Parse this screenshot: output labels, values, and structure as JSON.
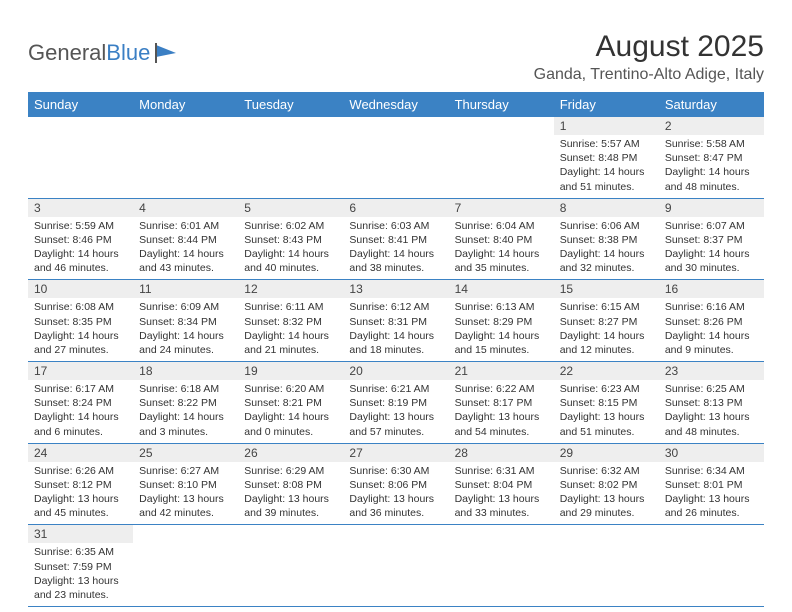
{
  "logo": {
    "text1": "General",
    "text2": "Blue"
  },
  "title": "August 2025",
  "location": "Ganda, Trentino-Alto Adige, Italy",
  "colors": {
    "header_bg": "#3b82c4",
    "header_text": "#ffffff",
    "daynum_bg": "#eeeeee",
    "row_border": "#3b82c4",
    "body_text": "#333333"
  },
  "day_headers": [
    "Sunday",
    "Monday",
    "Tuesday",
    "Wednesday",
    "Thursday",
    "Friday",
    "Saturday"
  ],
  "weeks": [
    [
      null,
      null,
      null,
      null,
      null,
      {
        "n": "1",
        "sr": "5:57 AM",
        "ss": "8:48 PM",
        "dl": "Daylight: 14 hours and 51 minutes."
      },
      {
        "n": "2",
        "sr": "5:58 AM",
        "ss": "8:47 PM",
        "dl": "Daylight: 14 hours and 48 minutes."
      }
    ],
    [
      {
        "n": "3",
        "sr": "5:59 AM",
        "ss": "8:46 PM",
        "dl": "Daylight: 14 hours and 46 minutes."
      },
      {
        "n": "4",
        "sr": "6:01 AM",
        "ss": "8:44 PM",
        "dl": "Daylight: 14 hours and 43 minutes."
      },
      {
        "n": "5",
        "sr": "6:02 AM",
        "ss": "8:43 PM",
        "dl": "Daylight: 14 hours and 40 minutes."
      },
      {
        "n": "6",
        "sr": "6:03 AM",
        "ss": "8:41 PM",
        "dl": "Daylight: 14 hours and 38 minutes."
      },
      {
        "n": "7",
        "sr": "6:04 AM",
        "ss": "8:40 PM",
        "dl": "Daylight: 14 hours and 35 minutes."
      },
      {
        "n": "8",
        "sr": "6:06 AM",
        "ss": "8:38 PM",
        "dl": "Daylight: 14 hours and 32 minutes."
      },
      {
        "n": "9",
        "sr": "6:07 AM",
        "ss": "8:37 PM",
        "dl": "Daylight: 14 hours and 30 minutes."
      }
    ],
    [
      {
        "n": "10",
        "sr": "6:08 AM",
        "ss": "8:35 PM",
        "dl": "Daylight: 14 hours and 27 minutes."
      },
      {
        "n": "11",
        "sr": "6:09 AM",
        "ss": "8:34 PM",
        "dl": "Daylight: 14 hours and 24 minutes."
      },
      {
        "n": "12",
        "sr": "6:11 AM",
        "ss": "8:32 PM",
        "dl": "Daylight: 14 hours and 21 minutes."
      },
      {
        "n": "13",
        "sr": "6:12 AM",
        "ss": "8:31 PM",
        "dl": "Daylight: 14 hours and 18 minutes."
      },
      {
        "n": "14",
        "sr": "6:13 AM",
        "ss": "8:29 PM",
        "dl": "Daylight: 14 hours and 15 minutes."
      },
      {
        "n": "15",
        "sr": "6:15 AM",
        "ss": "8:27 PM",
        "dl": "Daylight: 14 hours and 12 minutes."
      },
      {
        "n": "16",
        "sr": "6:16 AM",
        "ss": "8:26 PM",
        "dl": "Daylight: 14 hours and 9 minutes."
      }
    ],
    [
      {
        "n": "17",
        "sr": "6:17 AM",
        "ss": "8:24 PM",
        "dl": "Daylight: 14 hours and 6 minutes."
      },
      {
        "n": "18",
        "sr": "6:18 AM",
        "ss": "8:22 PM",
        "dl": "Daylight: 14 hours and 3 minutes."
      },
      {
        "n": "19",
        "sr": "6:20 AM",
        "ss": "8:21 PM",
        "dl": "Daylight: 14 hours and 0 minutes."
      },
      {
        "n": "20",
        "sr": "6:21 AM",
        "ss": "8:19 PM",
        "dl": "Daylight: 13 hours and 57 minutes."
      },
      {
        "n": "21",
        "sr": "6:22 AM",
        "ss": "8:17 PM",
        "dl": "Daylight: 13 hours and 54 minutes."
      },
      {
        "n": "22",
        "sr": "6:23 AM",
        "ss": "8:15 PM",
        "dl": "Daylight: 13 hours and 51 minutes."
      },
      {
        "n": "23",
        "sr": "6:25 AM",
        "ss": "8:13 PM",
        "dl": "Daylight: 13 hours and 48 minutes."
      }
    ],
    [
      {
        "n": "24",
        "sr": "6:26 AM",
        "ss": "8:12 PM",
        "dl": "Daylight: 13 hours and 45 minutes."
      },
      {
        "n": "25",
        "sr": "6:27 AM",
        "ss": "8:10 PM",
        "dl": "Daylight: 13 hours and 42 minutes."
      },
      {
        "n": "26",
        "sr": "6:29 AM",
        "ss": "8:08 PM",
        "dl": "Daylight: 13 hours and 39 minutes."
      },
      {
        "n": "27",
        "sr": "6:30 AM",
        "ss": "8:06 PM",
        "dl": "Daylight: 13 hours and 36 minutes."
      },
      {
        "n": "28",
        "sr": "6:31 AM",
        "ss": "8:04 PM",
        "dl": "Daylight: 13 hours and 33 minutes."
      },
      {
        "n": "29",
        "sr": "6:32 AM",
        "ss": "8:02 PM",
        "dl": "Daylight: 13 hours and 29 minutes."
      },
      {
        "n": "30",
        "sr": "6:34 AM",
        "ss": "8:01 PM",
        "dl": "Daylight: 13 hours and 26 minutes."
      }
    ],
    [
      {
        "n": "31",
        "sr": "6:35 AM",
        "ss": "7:59 PM",
        "dl": "Daylight: 13 hours and 23 minutes."
      },
      null,
      null,
      null,
      null,
      null,
      null
    ]
  ],
  "labels": {
    "sunrise": "Sunrise: ",
    "sunset": "Sunset: "
  }
}
